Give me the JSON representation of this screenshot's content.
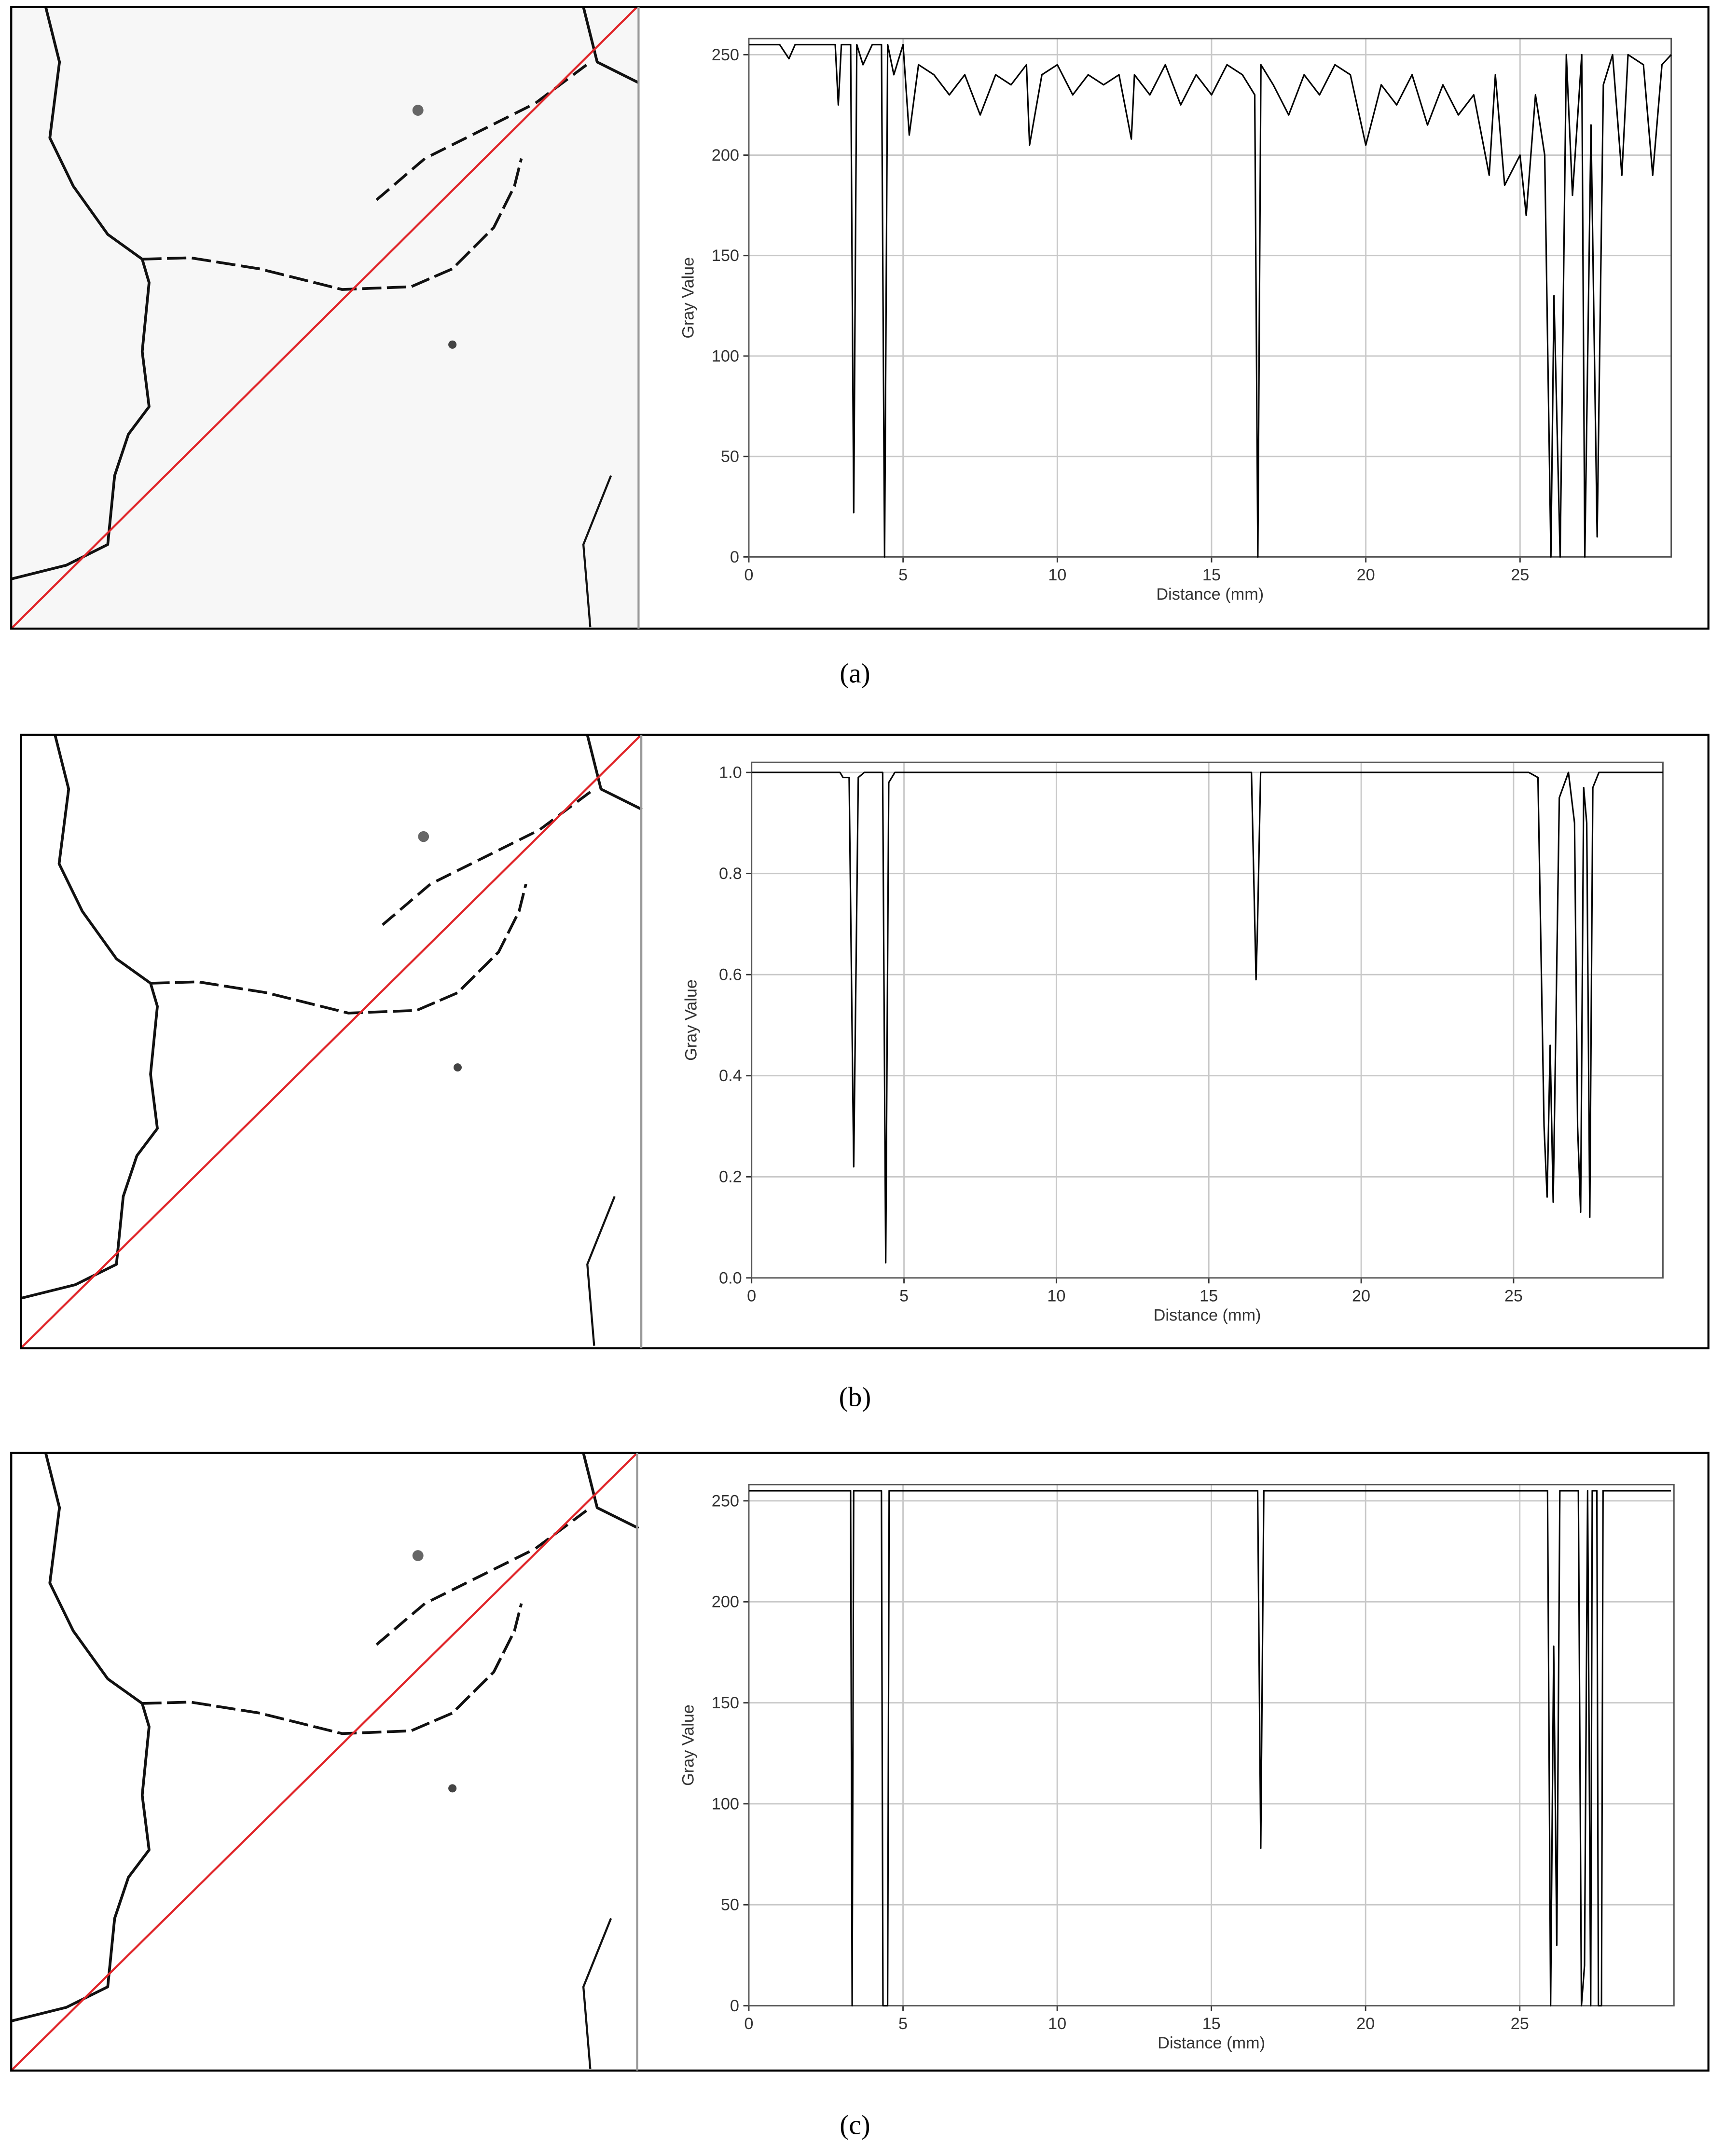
{
  "chart_data": [
    {
      "type": "line",
      "caption": "(a)",
      "xlabel": "Distance (mm)",
      "ylabel": "Gray Value",
      "xlim": [
        0,
        29.9
      ],
      "ylim": [
        0,
        258
      ],
      "xticks": [
        0,
        5,
        10,
        15,
        20,
        25
      ],
      "yticks": [
        0,
        50,
        100,
        150,
        200,
        250
      ],
      "grid": true,
      "color": "#000000",
      "x": [
        0,
        0.5,
        1,
        1.3,
        1.5,
        2,
        2.5,
        2.8,
        2.9,
        3,
        3.3,
        3.4,
        3.5,
        3.7,
        4,
        4.3,
        4.4,
        4.5,
        4.7,
        5,
        5.2,
        5.5,
        6,
        6.5,
        7,
        7.5,
        8,
        8.5,
        9,
        9.1,
        9.5,
        10,
        10.5,
        11,
        11.5,
        12,
        12.4,
        12.5,
        13,
        13.5,
        14,
        14.5,
        15,
        15.5,
        16,
        16.4,
        16.5,
        16.6,
        17,
        17.5,
        18,
        18.5,
        19,
        19.5,
        20,
        20.5,
        21,
        21.5,
        22,
        22.5,
        23,
        23.5,
        24,
        24.2,
        24.5,
        25,
        25.2,
        25.5,
        25.8,
        26,
        26.1,
        26.3,
        26.5,
        26.7,
        27,
        27.1,
        27.3,
        27.5,
        27.7,
        28,
        28.3,
        28.5,
        29,
        29.3,
        29.6,
        29.9
      ],
      "values": [
        255,
        255,
        255,
        248,
        255,
        255,
        255,
        255,
        225,
        255,
        255,
        22,
        255,
        245,
        255,
        255,
        0,
        255,
        240,
        255,
        210,
        245,
        240,
        230,
        240,
        220,
        240,
        235,
        245,
        205,
        240,
        245,
        230,
        240,
        235,
        240,
        208,
        240,
        230,
        245,
        225,
        240,
        230,
        245,
        240,
        230,
        0,
        245,
        235,
        220,
        240,
        230,
        245,
        240,
        205,
        235,
        225,
        240,
        215,
        235,
        220,
        230,
        190,
        240,
        185,
        200,
        170,
        230,
        200,
        0,
        130,
        0,
        250,
        180,
        250,
        0,
        215,
        10,
        235,
        250,
        190,
        250,
        245,
        190,
        245,
        250
      ]
    },
    {
      "type": "line",
      "caption": "(b)",
      "xlabel": "Distance (mm)",
      "ylabel": "Gray Value",
      "xlim": [
        0,
        29.9
      ],
      "ylim": [
        0,
        1.02
      ],
      "xticks": [
        0,
        5,
        10,
        15,
        20,
        25
      ],
      "yticks": [
        {
          "value": 0,
          "label": "0.0"
        },
        0.2,
        0.4,
        0.6,
        0.8,
        {
          "value": 1,
          "label": "1.0"
        }
      ],
      "grid": true,
      "color": "#000000",
      "x": [
        0,
        1,
        2,
        2.9,
        3.0,
        3.2,
        3.35,
        3.5,
        3.7,
        4.0,
        4.3,
        4.4,
        4.5,
        4.7,
        5,
        8,
        12,
        16,
        16.4,
        16.55,
        16.6,
        16.7,
        16.8,
        17,
        20,
        24,
        25,
        25.5,
        25.8,
        26.0,
        26.1,
        26.2,
        26.3,
        26.5,
        26.8,
        27.0,
        27.1,
        27.2,
        27.3,
        27.4,
        27.5,
        27.6,
        27.8,
        28,
        29.9
      ],
      "values": [
        1,
        1,
        1,
        1,
        0.99,
        0.99,
        0.22,
        0.99,
        1,
        1,
        1,
        0.03,
        0.98,
        1,
        1,
        1,
        1,
        1,
        1,
        0.59,
        0.7,
        1,
        1,
        1,
        1,
        1,
        1,
        1,
        0.99,
        0.3,
        0.16,
        0.46,
        0.15,
        0.95,
        1,
        0.9,
        0.3,
        0.13,
        0.97,
        0.9,
        0.12,
        0.97,
        1,
        1,
        1
      ]
    },
    {
      "type": "line",
      "caption": "(c)",
      "xlabel": "Distance (mm)",
      "ylabel": "Gray Value",
      "xlim": [
        0,
        30
      ],
      "ylim": [
        0,
        258
      ],
      "xticks": [
        0,
        5,
        10,
        15,
        20,
        25
      ],
      "yticks": [
        0,
        50,
        100,
        150,
        200,
        250
      ],
      "grid": true,
      "color": "#000000",
      "x": [
        0,
        3.3,
        3.35,
        3.4,
        3.5,
        4.3,
        4.35,
        4.5,
        4.55,
        16.5,
        16.6,
        16.7,
        25.9,
        26.0,
        26.1,
        26.2,
        26.3,
        26.4,
        26.6,
        26.9,
        27.0,
        27.1,
        27.2,
        27.3,
        27.35,
        27.5,
        27.55,
        27.65,
        27.7,
        29.9
      ],
      "values": [
        255,
        255,
        0,
        255,
        255,
        255,
        0,
        0,
        255,
        255,
        78,
        255,
        255,
        0,
        178,
        30,
        255,
        255,
        255,
        255,
        0,
        20,
        255,
        0,
        255,
        255,
        0,
        0,
        255,
        255
      ]
    }
  ]
}
